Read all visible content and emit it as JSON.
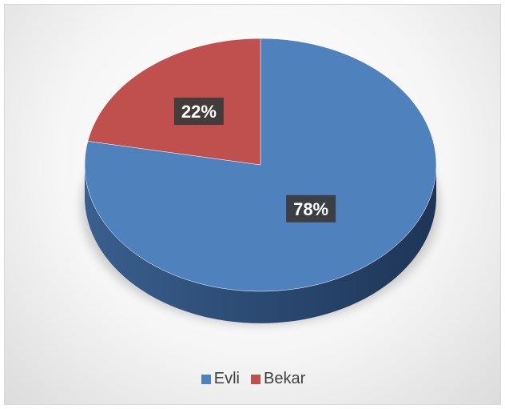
{
  "chart_data": {
    "type": "pie",
    "style": "3d",
    "categories": [
      "Evli",
      "Bekar"
    ],
    "values": [
      78,
      22
    ],
    "data_labels": [
      "78%",
      "22%"
    ],
    "colors": [
      "#4f81bd",
      "#c0504d"
    ],
    "legend": "bottom"
  }
}
